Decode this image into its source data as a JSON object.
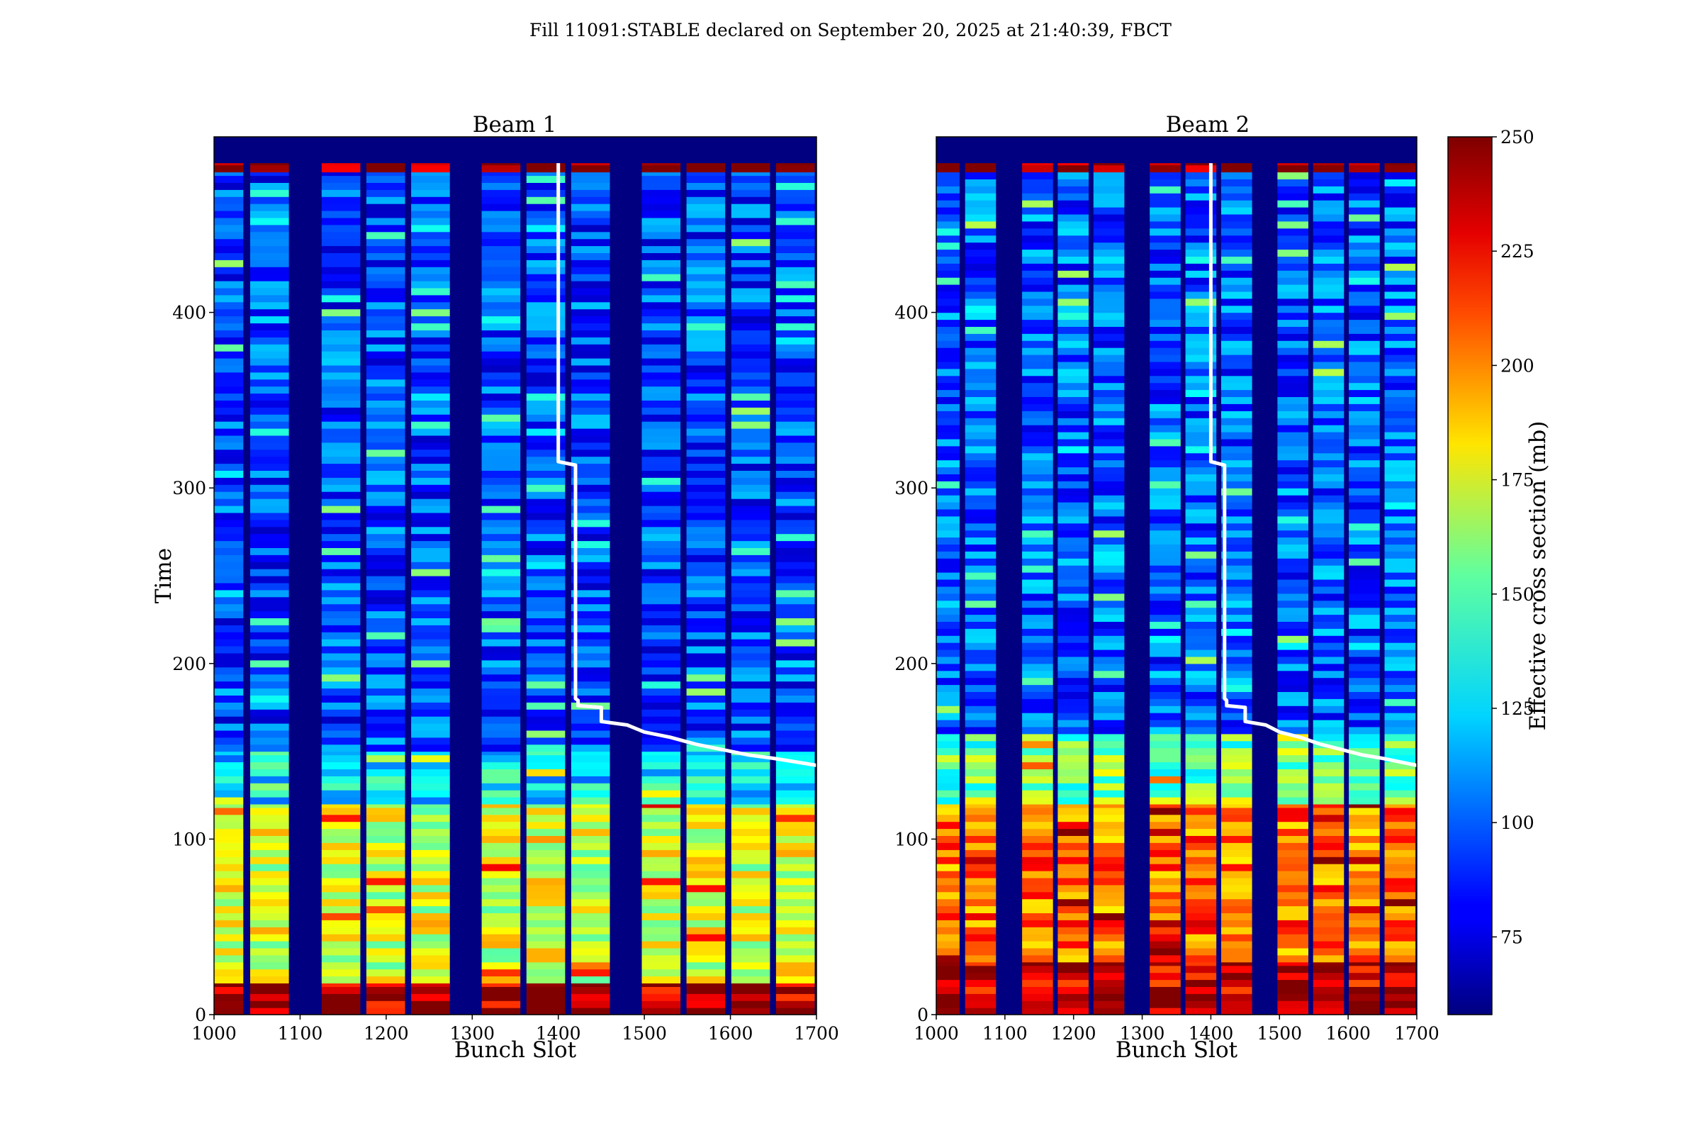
{
  "title": "Fill 11091:STABLE declared on September 20, 2025 at 21:40:39, FBCT",
  "colorbar": {
    "label": "Effective cross section (mb)",
    "range": [
      58,
      250
    ],
    "ticks": [
      "75",
      "100",
      "125",
      "150",
      "175",
      "200",
      "225",
      "250"
    ],
    "colormap": "jet"
  },
  "chart_data": [
    {
      "type": "heatmap",
      "title": "Beam 1",
      "xlabel": "Bunch Slot",
      "ylabel": "Time",
      "xlim": [
        1000,
        1700
      ],
      "ylim": [
        0,
        500
      ],
      "xticks": [
        "1000",
        "1100",
        "1200",
        "1300",
        "1400",
        "1500",
        "1600",
        "1700"
      ],
      "yticks": [
        "0",
        "100",
        "200",
        "300",
        "400"
      ],
      "filled_trains": [
        [
          1000,
          1034
        ],
        [
          1042,
          1087
        ],
        [
          1125,
          1170
        ],
        [
          1177,
          1222
        ],
        [
          1229,
          1274
        ],
        [
          1311,
          1356
        ],
        [
          1363,
          1408
        ],
        [
          1415,
          1460
        ],
        [
          1497,
          1542
        ],
        [
          1549,
          1594
        ],
        [
          1601,
          1646
        ],
        [
          1653,
          1698
        ]
      ],
      "cross_section_profile": [
        {
          "time_range": [
            0,
            18
          ],
          "level_mb": 240
        },
        {
          "time_range": [
            18,
            120
          ],
          "level_mb": 170
        },
        {
          "time_range": [
            120,
            150
          ],
          "level_mb": 125
        },
        {
          "time_range": [
            150,
            480
          ],
          "level_mb": 95
        },
        {
          "time_range": [
            480,
            485
          ],
          "level_mb": 250
        }
      ],
      "overlay_line": {
        "x": [
          1400,
          1400,
          1420,
          1420,
          1423,
          1423,
          1450,
          1450,
          1480,
          1500,
          1530,
          1560,
          1590,
          1620,
          1650,
          1700
        ],
        "y": [
          485,
          315,
          313,
          180,
          179,
          176,
          175,
          167,
          165,
          161,
          158,
          154,
          151,
          148,
          146,
          142
        ]
      }
    },
    {
      "type": "heatmap",
      "title": "Beam 2",
      "xlabel": "Bunch Slot",
      "ylabel": "",
      "xlim": [
        1000,
        1700
      ],
      "ylim": [
        0,
        500
      ],
      "xticks": [
        "1000",
        "1100",
        "1200",
        "1300",
        "1400",
        "1500",
        "1600",
        "1700"
      ],
      "yticks": [
        "0",
        "100",
        "200",
        "300",
        "400"
      ],
      "filled_trains": [
        [
          1000,
          1034
        ],
        [
          1042,
          1087
        ],
        [
          1125,
          1170
        ],
        [
          1177,
          1222
        ],
        [
          1229,
          1274
        ],
        [
          1311,
          1356
        ],
        [
          1363,
          1408
        ],
        [
          1415,
          1460
        ],
        [
          1497,
          1542
        ],
        [
          1549,
          1594
        ],
        [
          1601,
          1646
        ],
        [
          1653,
          1698
        ]
      ],
      "cross_section_profile": [
        {
          "time_range": [
            0,
            30
          ],
          "level_mb": 235
        },
        {
          "time_range": [
            30,
            120
          ],
          "level_mb": 205
        },
        {
          "time_range": [
            120,
            160
          ],
          "level_mb": 150
        },
        {
          "time_range": [
            160,
            480
          ],
          "level_mb": 100
        },
        {
          "time_range": [
            480,
            485
          ],
          "level_mb": 250
        }
      ],
      "overlay_line": {
        "x": [
          1400,
          1400,
          1420,
          1420,
          1423,
          1423,
          1450,
          1450,
          1480,
          1500,
          1530,
          1560,
          1590,
          1620,
          1650,
          1700
        ],
        "y": [
          485,
          315,
          313,
          180,
          179,
          176,
          175,
          167,
          165,
          161,
          158,
          154,
          151,
          148,
          146,
          142
        ]
      }
    }
  ]
}
